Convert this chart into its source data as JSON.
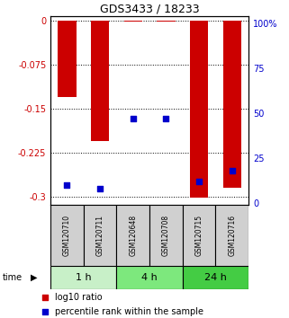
{
  "title": "GDS3433 / 18233",
  "samples": [
    "GSM120710",
    "GSM120711",
    "GSM120648",
    "GSM120708",
    "GSM120715",
    "GSM120716"
  ],
  "groups": [
    {
      "label": "1 h",
      "indices": [
        0,
        1
      ],
      "color": "#c8f0c8"
    },
    {
      "label": "4 h",
      "indices": [
        2,
        3
      ],
      "color": "#7de87d"
    },
    {
      "label": "24 h",
      "indices": [
        4,
        5
      ],
      "color": "#44cc44"
    }
  ],
  "log10_ratio": [
    -0.13,
    -0.205,
    -0.001,
    -0.001,
    -0.302,
    -0.285
  ],
  "percentile_rank": [
    10,
    8,
    47,
    47,
    12,
    18
  ],
  "ylim_left": [
    -0.315,
    0.008
  ],
  "ylim_right": [
    -1.0,
    104.0
  ],
  "yticks_left": [
    0,
    -0.075,
    -0.15,
    -0.225,
    -0.3
  ],
  "yticks_right": [
    0,
    25,
    50,
    75,
    100
  ],
  "bar_color": "#cc0000",
  "dot_color": "#0000cc",
  "bar_width": 0.55,
  "label_area_color": "#d0d0d0",
  "legend_red_label": "log10 ratio",
  "legend_blue_label": "percentile rank within the sample",
  "left_axis_color": "#cc0000",
  "right_axis_color": "#0000cc"
}
